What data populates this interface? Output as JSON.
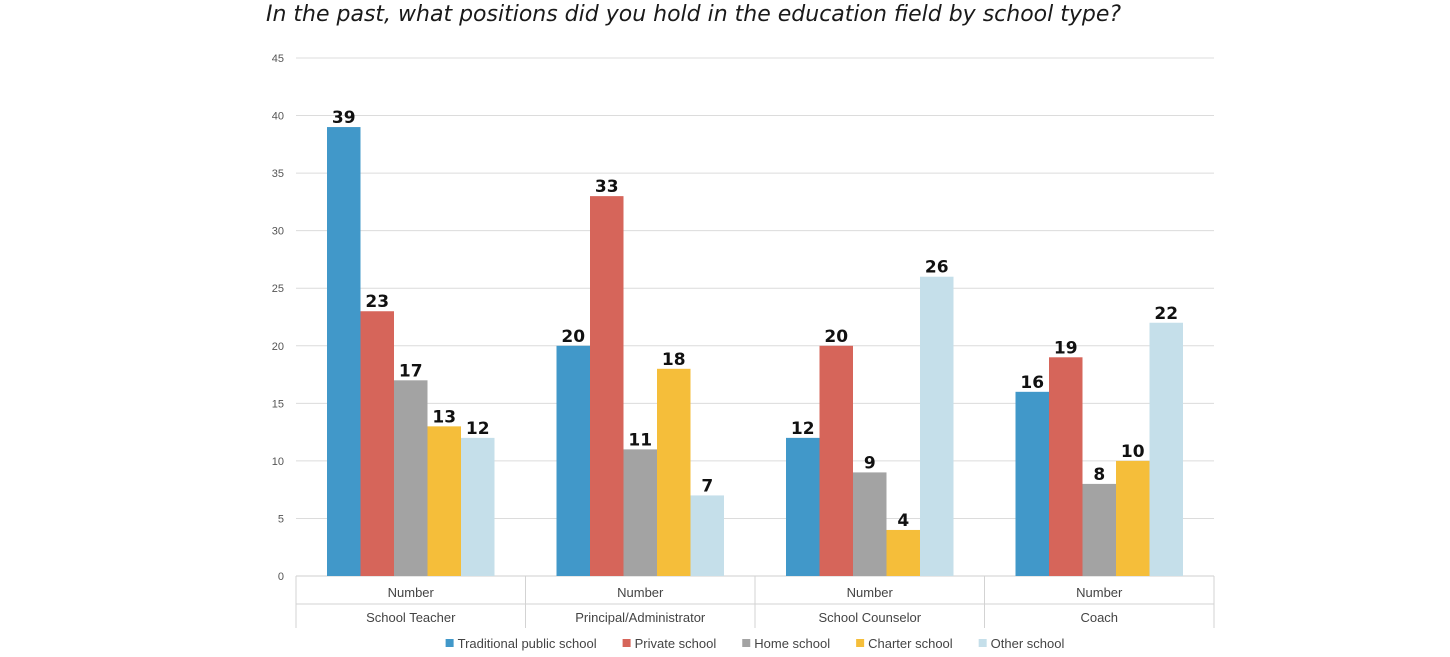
{
  "chart_data": {
    "type": "bar",
    "title": "In the past, what positions did you hold in the education field by school type?",
    "categories": [
      "School Teacher",
      "Principal/Administrator",
      "School Counselor",
      "Coach"
    ],
    "category_sublabel": "Number",
    "series": [
      {
        "name": "Traditional public school",
        "color": "#4198C9",
        "values": [
          39,
          20,
          12,
          16
        ]
      },
      {
        "name": "Private school",
        "color": "#D6655A",
        "values": [
          23,
          33,
          20,
          19
        ]
      },
      {
        "name": "Home school",
        "color": "#A3A3A3",
        "values": [
          17,
          11,
          9,
          8
        ]
      },
      {
        "name": "Charter school",
        "color": "#F5BE3A",
        "values": [
          13,
          18,
          4,
          10
        ]
      },
      {
        "name": "Other school",
        "color": "#C5DFEA",
        "values": [
          12,
          7,
          26,
          22
        ]
      }
    ],
    "ylim": [
      0,
      45
    ],
    "yticks": [
      0,
      5,
      10,
      15,
      20,
      25,
      30,
      35,
      40,
      45
    ],
    "grid": true,
    "legend": "bottom"
  }
}
